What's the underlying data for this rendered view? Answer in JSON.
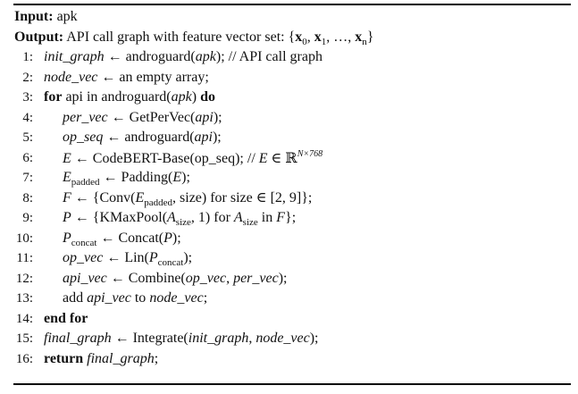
{
  "header": {
    "input_label": "Input:",
    "input_value": "apk",
    "output_label": "Output:",
    "output_text": "API call graph with feature vector set: {",
    "output_x": "x",
    "output_sub0": "0",
    "output_sub1": "1",
    "output_subn": "n",
    "output_comma": ", ",
    "output_dots": ", …, ",
    "output_close": "}"
  },
  "lines": [
    {
      "num": "1:",
      "indent": 0
    },
    {
      "num": "2:",
      "indent": 0
    },
    {
      "num": "3:",
      "indent": 0
    },
    {
      "num": "4:",
      "indent": 1
    },
    {
      "num": "5:",
      "indent": 1
    },
    {
      "num": "6:",
      "indent": 1
    },
    {
      "num": "7:",
      "indent": 1
    },
    {
      "num": "8:",
      "indent": 1
    },
    {
      "num": "9:",
      "indent": 1
    },
    {
      "num": "10:",
      "indent": 1
    },
    {
      "num": "11:",
      "indent": 1
    },
    {
      "num": "12:",
      "indent": 1
    },
    {
      "num": "13:",
      "indent": 1
    },
    {
      "num": "14:",
      "indent": 0
    },
    {
      "num": "15:",
      "indent": 0
    },
    {
      "num": "16:",
      "indent": 0
    }
  ],
  "t": {
    "l1_var": "init_graph",
    "l1_rest": " ← androguard(",
    "l1_arg": "apk",
    "l1_end": "); // API call graph",
    "l2_var": "node_vec",
    "l2_rest": " ← an empty array;",
    "l3_for": "for",
    "l3_mid": " api in androguard(",
    "l3_arg": "apk",
    "l3_close": ") ",
    "l3_do": "do",
    "l4_var": "per_vec",
    "l4_rest": " ← GetPerVec(",
    "l4_arg": "api",
    "l4_end": ");",
    "l5_var": "op_seq",
    "l5_rest": " ← androguard(",
    "l5_arg": "api",
    "l5_end": ");",
    "l6_var": "E",
    "l6_rest": " ← CodeBERT-Base(op_seq); // ",
    "l6_e": "E",
    "l6_in": " ∈ ",
    "l6_r": "ℝ",
    "l6_sup": "N×768",
    "l7_var": "E",
    "l7_sub": "padded",
    "l7_rest": " ← Padding(",
    "l7_arg": "E",
    "l7_end": ");",
    "l8_var": "F",
    "l8_rest": " ← {Conv(",
    "l8_e": "E",
    "l8_sub": "padded",
    "l8_end": ", size) for size ∈ [2, 9]};",
    "l9_var": "P",
    "l9_rest": " ← {KMaxPool(",
    "l9_a": "A",
    "l9_sub": "size",
    "l9_mid": ", 1) for ",
    "l9_a2": "A",
    "l9_sub2": "size",
    "l9_in": " in ",
    "l9_f": "F",
    "l9_end": "};",
    "l10_var": "P",
    "l10_sub": "concat",
    "l10_rest": " ← Concat(",
    "l10_arg": "P",
    "l10_end": ");",
    "l11_var": "op_vec",
    "l11_rest": " ← Lin(",
    "l11_p": "P",
    "l11_sub": "concat",
    "l11_end": ");",
    "l12_var": "api_vec",
    "l12_rest": " ← Combine(",
    "l12_a1": "op_vec",
    "l12_comma": ", ",
    "l12_a2": "per_vec",
    "l12_end": ");",
    "l13_add": "add ",
    "l13_a": "api_vec",
    "l13_to": " to ",
    "l13_b": "node_vec",
    "l13_end": ";",
    "l14_kw": "end for",
    "l15_var": "final_graph",
    "l15_rest": " ← Integrate(",
    "l15_a1": "init_graph",
    "l15_comma": ", ",
    "l15_a2": "node_vec",
    "l15_end": ");",
    "l16_kw": "return",
    "l16_sp": " ",
    "l16_var": "final_graph",
    "l16_end": ";"
  }
}
